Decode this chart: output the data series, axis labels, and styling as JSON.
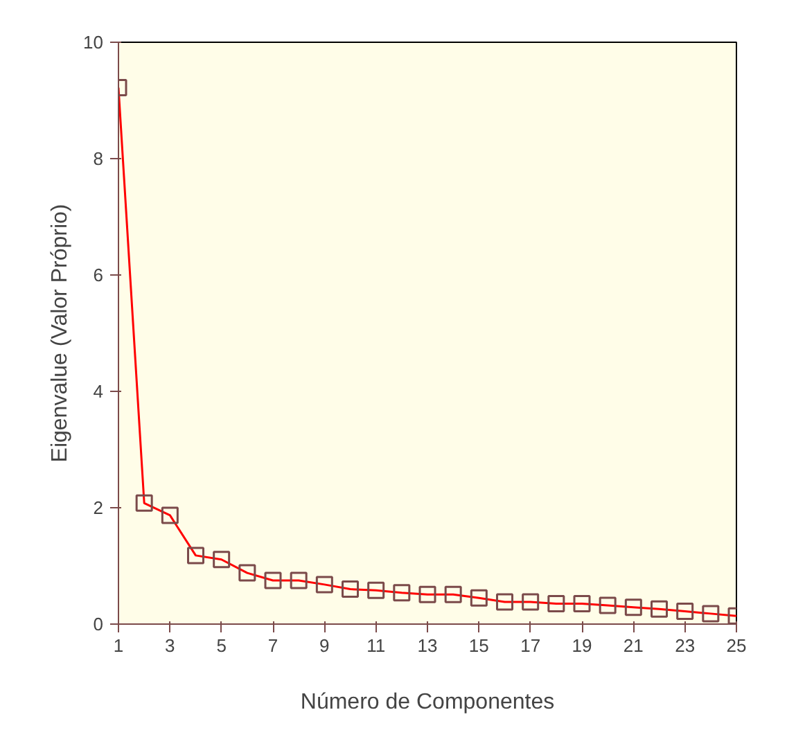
{
  "chart_data": {
    "type": "line",
    "xlabel": "Número de Componentes",
    "ylabel": "Eigenvalue (Valor Próprio)",
    "x": [
      1,
      2,
      3,
      4,
      5,
      6,
      7,
      8,
      9,
      10,
      11,
      12,
      13,
      14,
      15,
      16,
      17,
      18,
      19,
      20,
      21,
      22,
      23,
      24,
      25
    ],
    "series": [
      {
        "color": "#ff0000",
        "values": [
          9.22,
          2.08,
          1.87,
          1.18,
          1.11,
          0.88,
          0.75,
          0.75,
          0.68,
          0.6,
          0.58,
          0.54,
          0.51,
          0.51,
          0.45,
          0.38,
          0.38,
          0.35,
          0.35,
          0.32,
          0.29,
          0.26,
          0.22,
          0.18,
          0.14
        ]
      }
    ],
    "xlim": [
      1,
      25
    ],
    "xticks": [
      1,
      3,
      5,
      7,
      9,
      11,
      13,
      15,
      17,
      19,
      21,
      23,
      25
    ],
    "ylim": [
      0,
      10
    ],
    "yticks": [
      0,
      2,
      4,
      6,
      8,
      10
    ],
    "marker": "square",
    "line_style": "solid",
    "grid": false
  }
}
